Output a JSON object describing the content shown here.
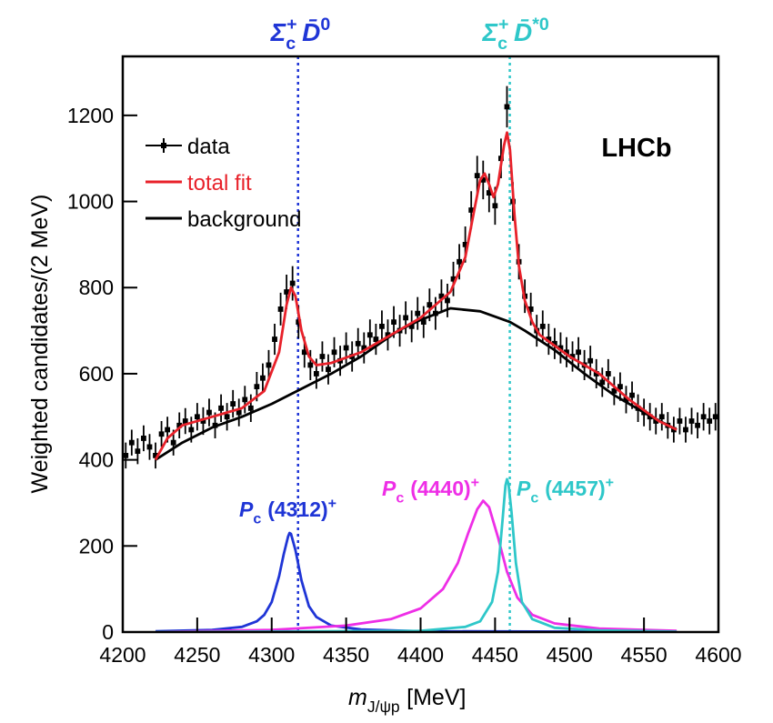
{
  "chart_data": {
    "type": "line",
    "ylabel": "Weighted candidates/(2 MeV)",
    "xlabel": {
      "text": [
        "m",
        "J/ψp",
        "[MeV]"
      ],
      "roles": [
        "italic",
        "sub",
        "base"
      ]
    },
    "experiment": "LHCb",
    "xlim": [
      4200,
      4600
    ],
    "ylim": [
      0,
      1337
    ],
    "xticks": [
      4200,
      4250,
      4300,
      4350,
      4400,
      4450,
      4500,
      4550,
      4600
    ],
    "yticks": [
      0,
      200,
      400,
      600,
      800,
      1000,
      1200
    ],
    "legend": "upper left",
    "series": [
      {
        "name": "data",
        "kind": "errorbar",
        "color": "#000000",
        "x": [
          4202,
          4206,
          4210,
          4214,
          4218,
          4222,
          4226,
          4230,
          4234,
          4238,
          4242,
          4246,
          4250,
          4254,
          4258,
          4262,
          4266,
          4270,
          4274,
          4278,
          4282,
          4286,
          4290,
          4294,
          4298,
          4302,
          4306,
          4310,
          4314,
          4318,
          4322,
          4326,
          4330,
          4334,
          4338,
          4342,
          4346,
          4350,
          4354,
          4358,
          4362,
          4366,
          4370,
          4374,
          4378,
          4382,
          4386,
          4390,
          4394,
          4398,
          4402,
          4406,
          4410,
          4414,
          4418,
          4422,
          4426,
          4430,
          4434,
          4438,
          4442,
          4446,
          4450,
          4454,
          4458,
          4462,
          4466,
          4470,
          4474,
          4478,
          4482,
          4486,
          4490,
          4494,
          4498,
          4502,
          4506,
          4510,
          4514,
          4518,
          4522,
          4526,
          4530,
          4534,
          4538,
          4542,
          4546,
          4550,
          4554,
          4558,
          4562,
          4566,
          4570,
          4574,
          4578,
          4582,
          4586,
          4590,
          4594,
          4598
        ],
        "values": [
          410,
          440,
          420,
          450,
          430,
          410,
          460,
          470,
          440,
          480,
          490,
          470,
          500,
          490,
          510,
          480,
          520,
          500,
          530,
          510,
          540,
          520,
          570,
          590,
          620,
          680,
          750,
          790,
          810,
          720,
          650,
          620,
          600,
          640,
          610,
          650,
          630,
          660,
          640,
          670,
          660,
          690,
          680,
          710,
          690,
          720,
          700,
          730,
          710,
          740,
          720,
          760,
          740,
          780,
          770,
          820,
          860,
          900,
          980,
          1060,
          1050,
          1020,
          990,
          1100,
          1220,
          1000,
          860,
          780,
          750,
          700,
          710,
          680,
          670,
          660,
          650,
          640,
          650,
          620,
          630,
          600,
          580,
          600,
          560,
          570,
          540,
          550,
          520,
          510,
          500,
          490,
          500,
          480,
          470,
          490,
          470,
          490,
          480,
          500,
          490,
          500
        ],
        "errors": [
          30,
          30,
          30,
          30,
          30,
          30,
          30,
          30,
          30,
          30,
          30,
          30,
          32,
          32,
          32,
          30,
          32,
          32,
          32,
          32,
          32,
          32,
          34,
          34,
          35,
          36,
          38,
          40,
          40,
          38,
          36,
          35,
          35,
          35,
          35,
          35,
          35,
          36,
          35,
          36,
          36,
          36,
          36,
          37,
          36,
          37,
          37,
          38,
          37,
          38,
          37,
          38,
          38,
          39,
          39,
          40,
          41,
          42,
          44,
          46,
          45,
          45,
          44,
          46,
          48,
          45,
          41,
          39,
          38,
          37,
          37,
          36,
          36,
          36,
          35,
          35,
          35,
          35,
          35,
          34,
          34,
          34,
          33,
          33,
          32,
          32,
          32,
          32,
          32,
          31,
          32,
          31,
          30,
          31,
          30,
          31,
          30,
          32,
          31,
          32
        ]
      },
      {
        "name": "total fit",
        "kind": "line",
        "color": "#e8212a",
        "x": [
          4222,
          4230,
          4240,
          4260,
          4280,
          4295,
          4305,
          4310,
          4313,
          4316,
          4320,
          4325,
          4330,
          4340,
          4360,
          4380,
          4400,
          4420,
          4430,
          4436,
          4440,
          4443,
          4446,
          4449,
          4452,
          4456,
          4458,
          4460,
          4463,
          4466,
          4470,
          4475,
          4480,
          4500,
          4520,
          4540,
          4560,
          4572
        ],
        "values": [
          400,
          450,
          480,
          500,
          520,
          560,
          650,
          760,
          800,
          780,
          700,
          640,
          620,
          625,
          650,
          690,
          730,
          790,
          870,
          980,
          1050,
          1065,
          1040,
          1010,
          1040,
          1130,
          1160,
          1120,
          970,
          850,
          770,
          720,
          690,
          640,
          600,
          540,
          490,
          470
        ]
      },
      {
        "name": "background",
        "kind": "line",
        "color": "#000000",
        "x": [
          4222,
          4240,
          4260,
          4280,
          4300,
          4320,
          4340,
          4360,
          4385,
          4400,
          4420,
          4440,
          4460,
          4470,
          4490,
          4510,
          4530,
          4555,
          4572
        ],
        "values": [
          400,
          440,
          475,
          500,
          530,
          565,
          600,
          640,
          700,
          725,
          752,
          745,
          720,
          700,
          655,
          600,
          550,
          500,
          470
        ]
      },
      {
        "kind": "line",
        "color": "#1f35d6",
        "label": {
          "text": [
            "P",
            "c",
            "(4312)",
            "+"
          ],
          "roles": [
            "italic",
            "sub",
            "base",
            "sup"
          ]
        },
        "x": [
          4222,
          4260,
          4280,
          4290,
          4295,
          4300,
          4305,
          4308,
          4311,
          4312,
          4313,
          4316,
          4320,
          4325,
          4330,
          4340,
          4360,
          4400,
          4500,
          4572
        ],
        "values": [
          2,
          5,
          12,
          25,
          40,
          70,
          130,
          180,
          222,
          230,
          228,
          190,
          120,
          60,
          35,
          15,
          6,
          2,
          1,
          0
        ]
      },
      {
        "kind": "line",
        "color": "#ee2ee6",
        "label": {
          "text": [
            "P",
            "c",
            "(4440)",
            "+"
          ],
          "roles": [
            "italic",
            "sub",
            "base",
            "sup"
          ]
        },
        "x": [
          4222,
          4300,
          4350,
          4380,
          4400,
          4415,
          4425,
          4432,
          4438,
          4442,
          4446,
          4452,
          4458,
          4465,
          4475,
          4490,
          4520,
          4572
        ],
        "values": [
          0,
          5,
          15,
          30,
          55,
          100,
          160,
          230,
          285,
          305,
          290,
          220,
          140,
          80,
          40,
          20,
          8,
          3
        ]
      },
      {
        "kind": "line",
        "color": "#2ec7c9",
        "label": {
          "text": [
            "P",
            "c",
            "(4457)",
            "+"
          ],
          "roles": [
            "italic",
            "sub",
            "base",
            "sup"
          ]
        },
        "x": [
          4222,
          4400,
          4430,
          4440,
          4448,
          4452,
          4455,
          4457,
          4458,
          4459,
          4461,
          4464,
          4468,
          4475,
          4490,
          4520,
          4572
        ],
        "values": [
          0,
          3,
          12,
          25,
          70,
          140,
          260,
          340,
          355,
          345,
          280,
          160,
          70,
          30,
          10,
          4,
          1
        ]
      }
    ],
    "thresholds": [
      {
        "x": 4317.7,
        "color": "#1f35d6",
        "label": {
          "text": [
            "Σ",
            "c",
            "+",
            "D̄",
            "0"
          ],
          "roles": [
            "italic",
            "subsup",
            "sup",
            "italic",
            "sup"
          ]
        }
      },
      {
        "x": 4459.9,
        "color": "#2ec7c9",
        "label": {
          "text": [
            "Σ",
            "c",
            "+",
            "D̄",
            "*0"
          ],
          "roles": [
            "italic",
            "subsup",
            "sup",
            "italic",
            "sup"
          ]
        }
      }
    ]
  }
}
